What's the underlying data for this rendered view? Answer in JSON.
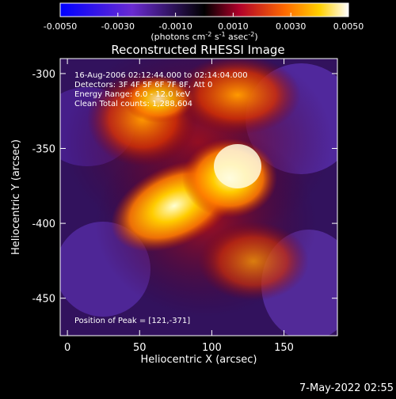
{
  "chart_data": {
    "type": "heatmap",
    "title": "Reconstructed RHESSI Image",
    "xlabel": "Heliocentric X (arcsec)",
    "ylabel": "Heliocentric Y (arcsec)",
    "xlim": [
      -5,
      187
    ],
    "ylim": [
      -475,
      -290
    ],
    "xticks": [
      0,
      50,
      100,
      150
    ],
    "yticks": [
      -300,
      -350,
      -400,
      -450
    ],
    "colorbar": {
      "ticks": [
        "-0.0050",
        "-0.0030",
        "-0.0010",
        "0.0010",
        "0.0030",
        "0.0050"
      ],
      "range": [
        -0.005,
        0.005
      ],
      "unit_prefix": "(photons cm",
      "unit_exp1": "-2",
      "unit_mid": " s",
      "unit_exp2": "-1",
      "unit_mid2": " asec",
      "unit_exp3": "-2",
      "unit_suffix": ")"
    },
    "annotations": [
      "16-Aug-2006 02:12:44.000 to 02:14:04.000",
      "Detectors: 3F 4F 5F 6F 7F 8F, Att 0",
      "Energy Range: 6.0 - 12.0 keV",
      "Clean     Total counts: 1,288,604"
    ],
    "peak_label": "Position of Peak = [121,-371]",
    "peak": [
      121,
      -371
    ]
  },
  "footer": {
    "date": "7-May-2022 02:55"
  },
  "colors": {
    "background": "#000000",
    "text": "#ffffff"
  }
}
